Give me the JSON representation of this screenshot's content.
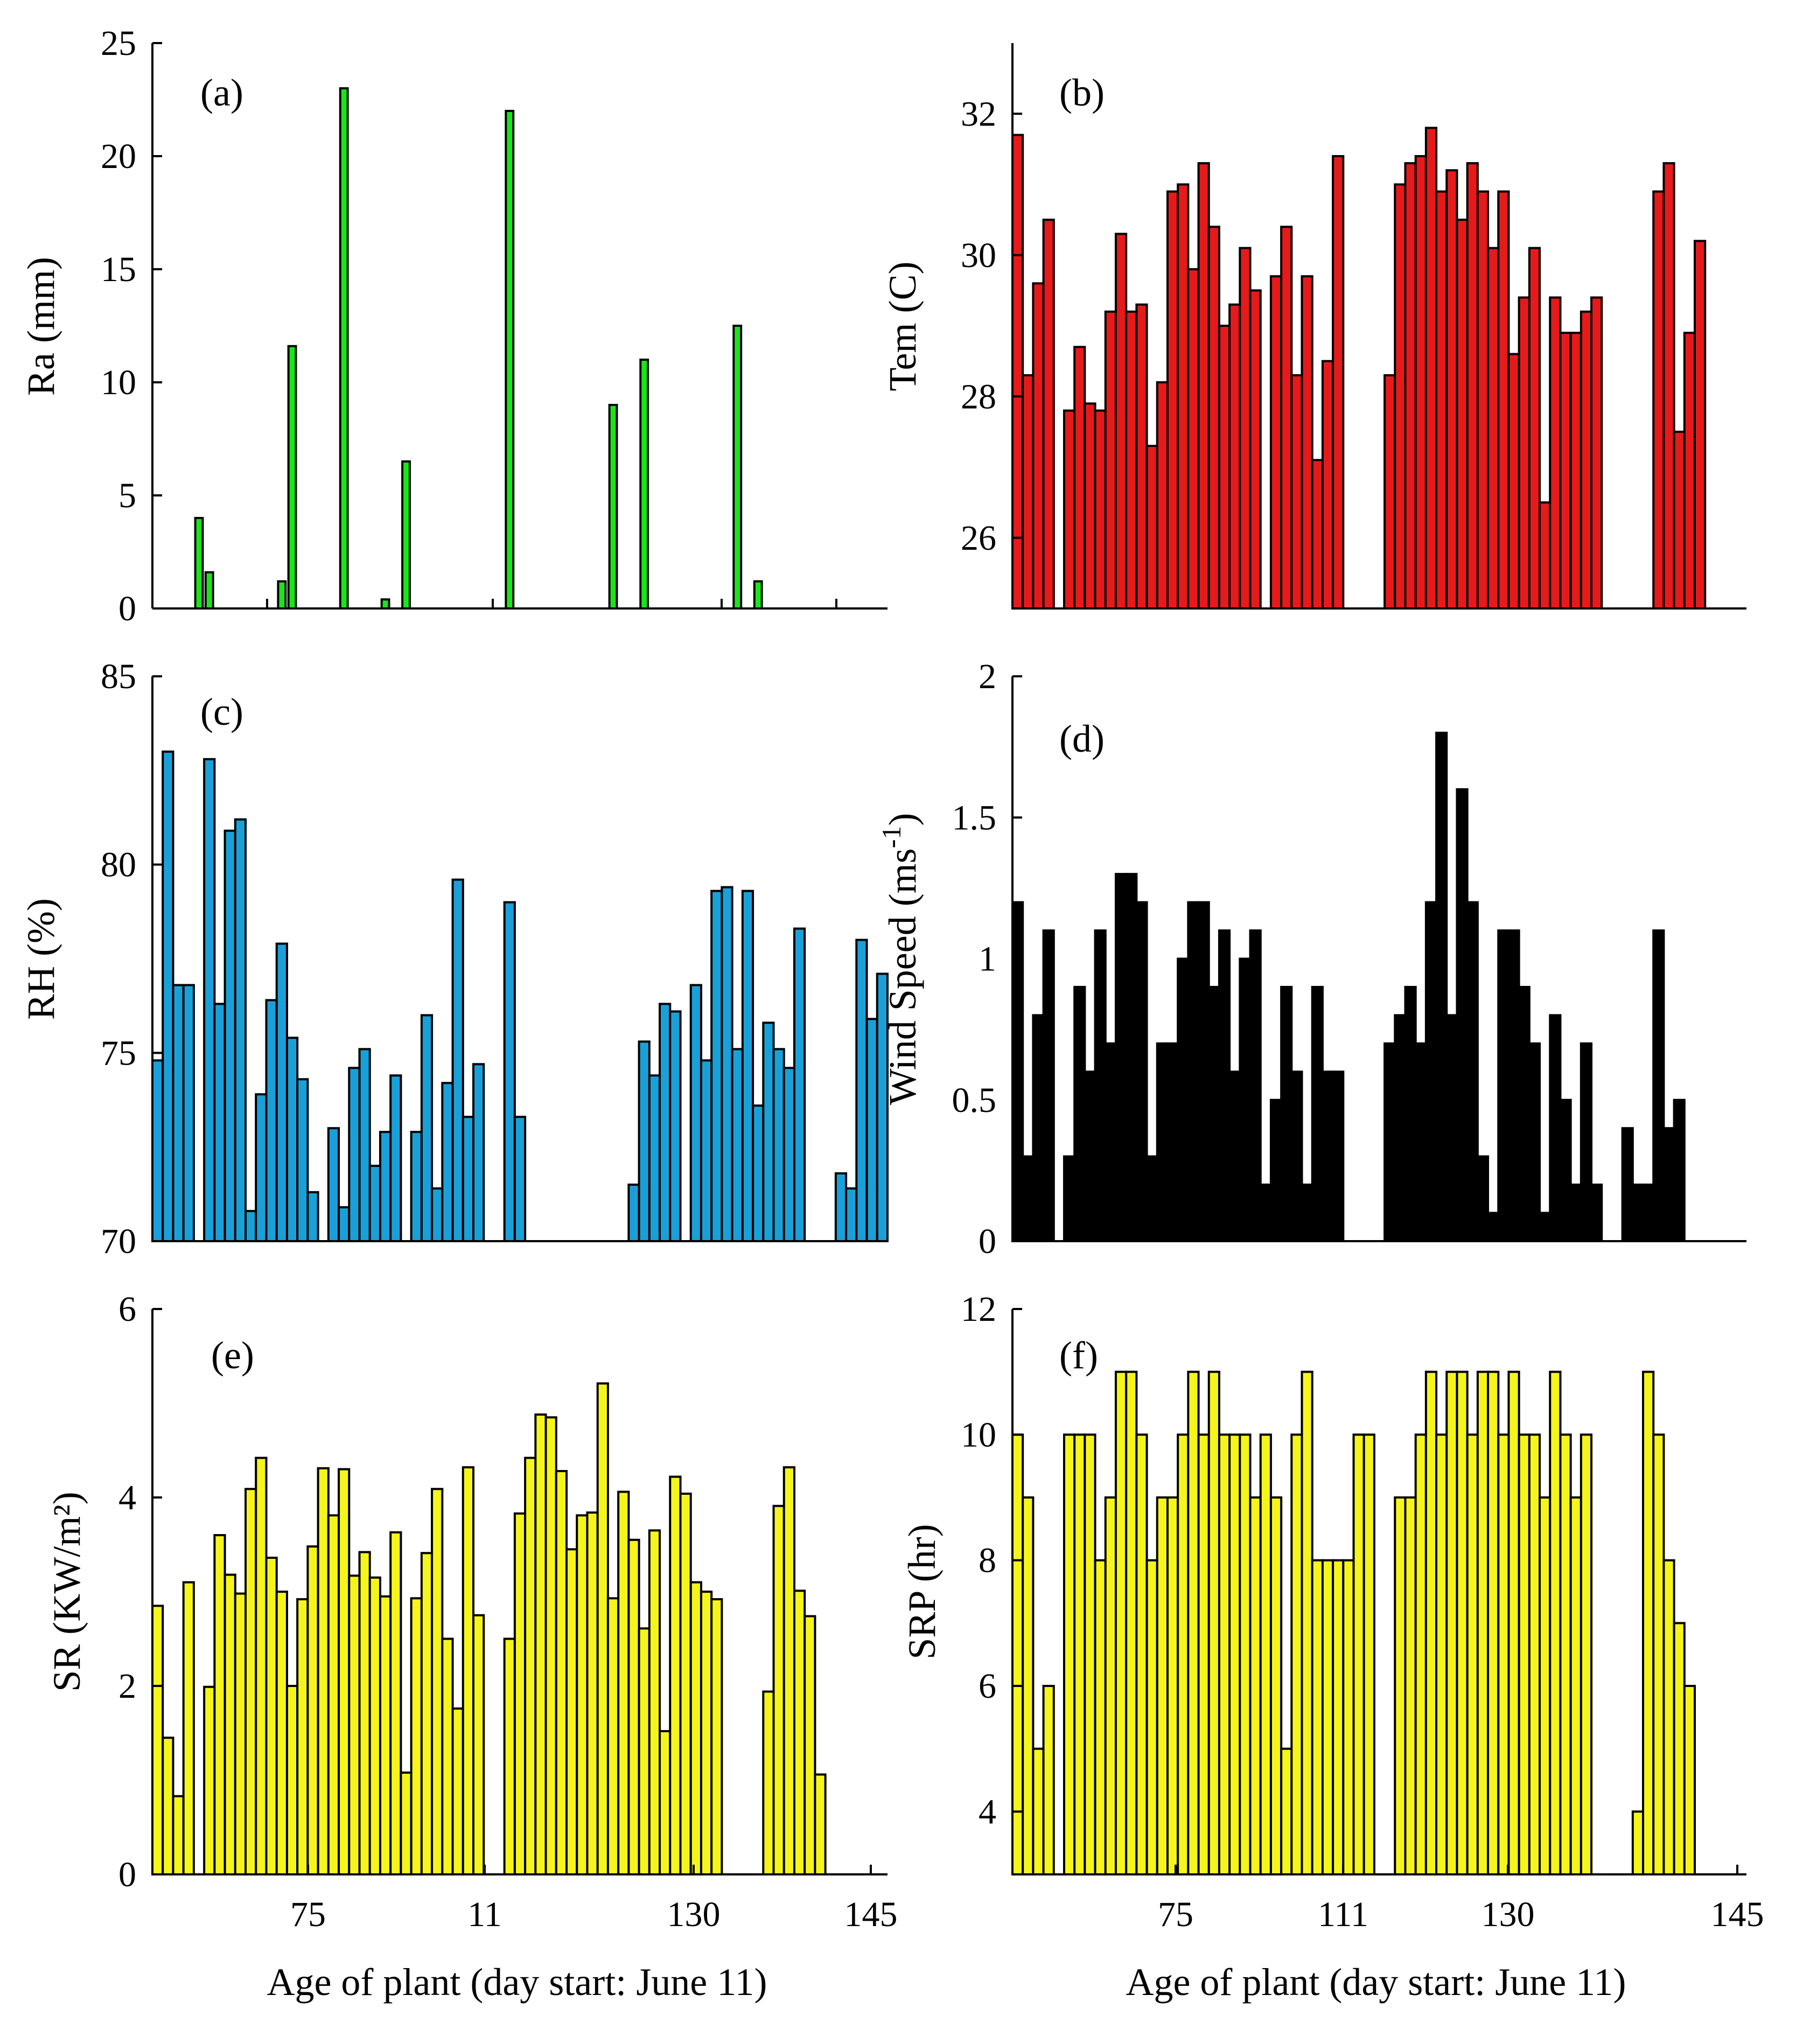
{
  "figure": {
    "xlabel": "Age of plant (day start: June 11)"
  },
  "chart_data": [
    {
      "id": "a",
      "type": "bar",
      "panel_label": "(a)",
      "ylabel": "Ra (mm)",
      "color": "#19e619",
      "ylim": [
        0,
        25
      ],
      "yticks": [
        0,
        5,
        10,
        15,
        20,
        25
      ],
      "n_slots": 71,
      "values": [
        null,
        null,
        null,
        null,
        4,
        1.6,
        null,
        null,
        null,
        null,
        null,
        null,
        1.2,
        11.6,
        null,
        null,
        null,
        null,
        23,
        null,
        null,
        null,
        0.4,
        null,
        6.5,
        null,
        null,
        null,
        null,
        null,
        null,
        null,
        null,
        null,
        22,
        null,
        null,
        null,
        null,
        null,
        null,
        null,
        null,
        null,
        9,
        null,
        null,
        11,
        null,
        null,
        null,
        null,
        null,
        null,
        null,
        null,
        12.5,
        null,
        1.2,
        null,
        null,
        null,
        null,
        null,
        null,
        null,
        null,
        null,
        null,
        null,
        null
      ],
      "xticks": [],
      "xtick_marks": 7
    },
    {
      "id": "b",
      "type": "bar",
      "panel_label": "(b)",
      "ylabel": "Tem (C)",
      "color": "#e61a1a",
      "ylim": [
        25,
        33
      ],
      "yticks": [
        26,
        28,
        30,
        32
      ],
      "n_slots": 71,
      "values": [
        31.7,
        28.3,
        29.6,
        30.5,
        null,
        27.8,
        28.7,
        27.9,
        27.8,
        29.2,
        30.3,
        29.2,
        29.3,
        27.3,
        28.2,
        30.9,
        31.0,
        29.8,
        31.3,
        30.4,
        29.0,
        29.3,
        30.1,
        29.5,
        null,
        29.7,
        30.4,
        28.3,
        29.7,
        27.1,
        28.5,
        31.4,
        null,
        null,
        null,
        null,
        28.3,
        31.0,
        31.3,
        31.4,
        31.8,
        30.9,
        31.2,
        30.5,
        31.3,
        30.9,
        30.1,
        30.9,
        28.6,
        29.4,
        30.1,
        26.5,
        29.4,
        28.9,
        28.9,
        29.2,
        29.4,
        null,
        null,
        null,
        null,
        null,
        30.9,
        31.3,
        27.5,
        28.9,
        30.2,
        null,
        null,
        null,
        null
      ],
      "xticks": [],
      "xtick_marks": 0
    },
    {
      "id": "c",
      "type": "bar",
      "panel_label": "(c)",
      "ylabel": "RH (%)",
      "color": "#1aa0d8",
      "ylim": [
        70,
        85
      ],
      "yticks": [
        70,
        75,
        80,
        85
      ],
      "n_slots": 71,
      "values": [
        74.8,
        83.0,
        76.8,
        76.8,
        null,
        82.8,
        76.3,
        80.9,
        81.2,
        70.8,
        73.9,
        76.4,
        77.9,
        75.4,
        74.3,
        71.3,
        null,
        73.0,
        70.9,
        74.6,
        75.1,
        72.0,
        72.9,
        74.4,
        null,
        72.9,
        76.0,
        71.4,
        74.2,
        79.6,
        73.3,
        74.7,
        null,
        null,
        79.0,
        73.3,
        null,
        null,
        null,
        null,
        null,
        null,
        null,
        null,
        null,
        null,
        71.5,
        75.3,
        74.4,
        76.3,
        76.1,
        null,
        76.8,
        74.8,
        79.3,
        79.4,
        75.1,
        79.3,
        73.6,
        75.8,
        75.1,
        74.6,
        78.3,
        null,
        null,
        null,
        71.8,
        71.4,
        78.0,
        75.9,
        77.1
      ],
      "xticks": [],
      "xtick_marks": 0
    },
    {
      "id": "d",
      "type": "bar",
      "panel_label": "(d)",
      "ylabel_main": "Wind Speed (ms",
      "ylabel_sup": "-1",
      "ylabel_end": ")",
      "color": "#000000",
      "ylim": [
        0,
        2
      ],
      "yticks": [
        0,
        0.5,
        1,
        1.5,
        2
      ],
      "n_slots": 71,
      "values": [
        1.2,
        0.3,
        0.8,
        1.1,
        null,
        0.3,
        0.9,
        0.6,
        1.1,
        0.7,
        1.3,
        1.3,
        1.2,
        0.3,
        0.7,
        0.7,
        1.0,
        1.2,
        1.2,
        0.9,
        1.1,
        0.6,
        1.0,
        1.1,
        0.2,
        0.5,
        0.9,
        0.6,
        0.2,
        0.9,
        0.6,
        0.6,
        null,
        null,
        null,
        null,
        0.7,
        0.8,
        0.9,
        0.7,
        1.2,
        1.8,
        0.8,
        1.6,
        1.2,
        0.3,
        0.1,
        1.1,
        1.1,
        0.9,
        0.7,
        0.1,
        0.8,
        0.5,
        0.2,
        0.7,
        0.2,
        null,
        null,
        0.4,
        0.2,
        0.2,
        1.1,
        0.4,
        0.5,
        null,
        null,
        null,
        null,
        null,
        null
      ],
      "xticks": [],
      "xtick_marks": 0
    },
    {
      "id": "e",
      "type": "bar",
      "panel_label": "(e)",
      "ylabel": "SR (KW/m²)",
      "color": "#f5f51a",
      "ylim": [
        0,
        6
      ],
      "yticks": [
        0,
        2,
        4,
        6
      ],
      "n_slots": 71,
      "values": [
        2.85,
        1.45,
        0.83,
        3.1,
        null,
        1.99,
        3.6,
        3.18,
        2.98,
        4.09,
        4.42,
        3.36,
        3.0,
        2.0,
        2.92,
        3.48,
        4.31,
        3.81,
        4.3,
        3.17,
        3.42,
        3.15,
        2.95,
        3.63,
        1.08,
        2.93,
        3.41,
        4.09,
        2.5,
        1.76,
        4.32,
        2.75,
        null,
        null,
        2.5,
        3.83,
        4.42,
        4.88,
        4.85,
        4.28,
        3.45,
        3.81,
        3.84,
        5.21,
        2.93,
        4.06,
        3.55,
        2.61,
        3.65,
        1.52,
        4.22,
        4.04,
        3.1,
        3.0,
        2.92,
        null,
        null,
        null,
        null,
        1.94,
        3.91,
        4.32,
        3.01,
        2.74,
        1.06,
        null,
        null,
        null,
        null,
        null,
        null
      ],
      "xticks": [
        "75",
        "11",
        "130",
        "145"
      ],
      "xtick_marks": 4
    },
    {
      "id": "f",
      "type": "bar",
      "panel_label": "(f)",
      "ylabel": "SRP (hr)",
      "color": "#f5f51a",
      "ylim": [
        3,
        12
      ],
      "yticks": [
        4,
        6,
        8,
        10,
        12
      ],
      "n_slots": 71,
      "values": [
        10,
        9,
        5,
        6,
        null,
        10,
        10,
        10,
        8,
        9,
        11,
        11,
        10,
        8,
        9,
        9,
        10,
        11,
        10,
        11,
        10,
        10,
        10,
        9,
        10,
        9,
        5,
        10,
        11,
        8,
        8,
        8,
        8,
        10,
        10,
        null,
        null,
        9,
        9,
        10,
        11,
        10,
        11,
        11,
        10,
        11,
        11,
        10,
        11,
        10,
        10,
        9,
        11,
        10,
        9,
        10,
        null,
        null,
        null,
        null,
        4,
        11,
        10,
        8,
        7,
        6,
        null,
        null,
        null,
        null,
        null
      ],
      "xticks": [
        "75",
        "111",
        "130",
        "145"
      ],
      "xtick_marks": 4
    }
  ]
}
